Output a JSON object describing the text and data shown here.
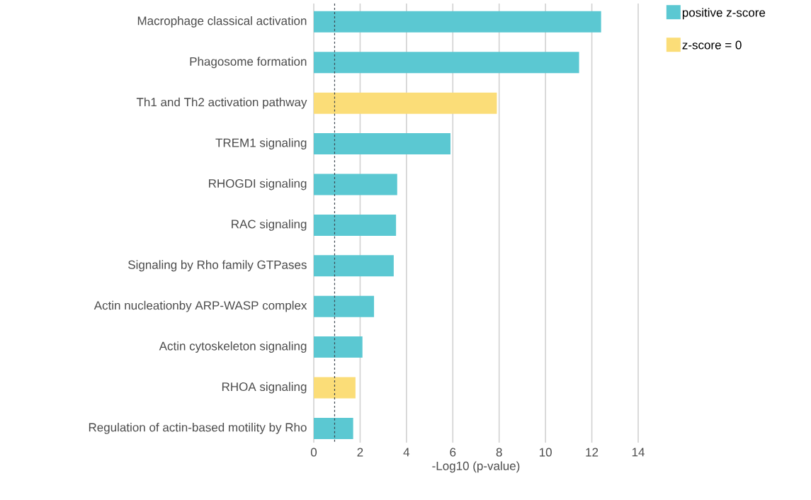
{
  "chart_data": {
    "type": "bar",
    "orientation": "horizontal",
    "xlabel": "-Log10 (p-value)",
    "categories": [
      "Macrophage classical activation",
      "Phagosome formation",
      "Th1 and Th2 activation pathway",
      "TREM1 signaling",
      "RHOGDI signaling",
      "RAC signaling",
      "Signaling by Rho family GTPases",
      "Actin nucleationby ARP-WASP complex",
      "Actin cytoskeleton signaling",
      "RHOA signaling",
      "Regulation of actin-based motility by Rho"
    ],
    "series": [
      {
        "name": "positive z-score",
        "color": "#5bc8d2",
        "values": [
          12.4,
          11.45,
          null,
          5.9,
          3.6,
          3.55,
          3.45,
          2.6,
          2.1,
          null,
          1.7
        ]
      },
      {
        "name": "z-score = 0",
        "color": "#fbdd78",
        "values": [
          null,
          null,
          7.9,
          null,
          null,
          null,
          null,
          null,
          null,
          1.8,
          null
        ]
      }
    ],
    "xlim": [
      0,
      14
    ],
    "xticks": [
      0,
      2,
      4,
      6,
      8,
      10,
      12,
      14
    ],
    "grid": "x",
    "legend": "top right",
    "ref_lines": [
      {
        "axis": "x",
        "value": 0.9,
        "color": "#3c4650",
        "line_style": "dashed"
      }
    ]
  }
}
